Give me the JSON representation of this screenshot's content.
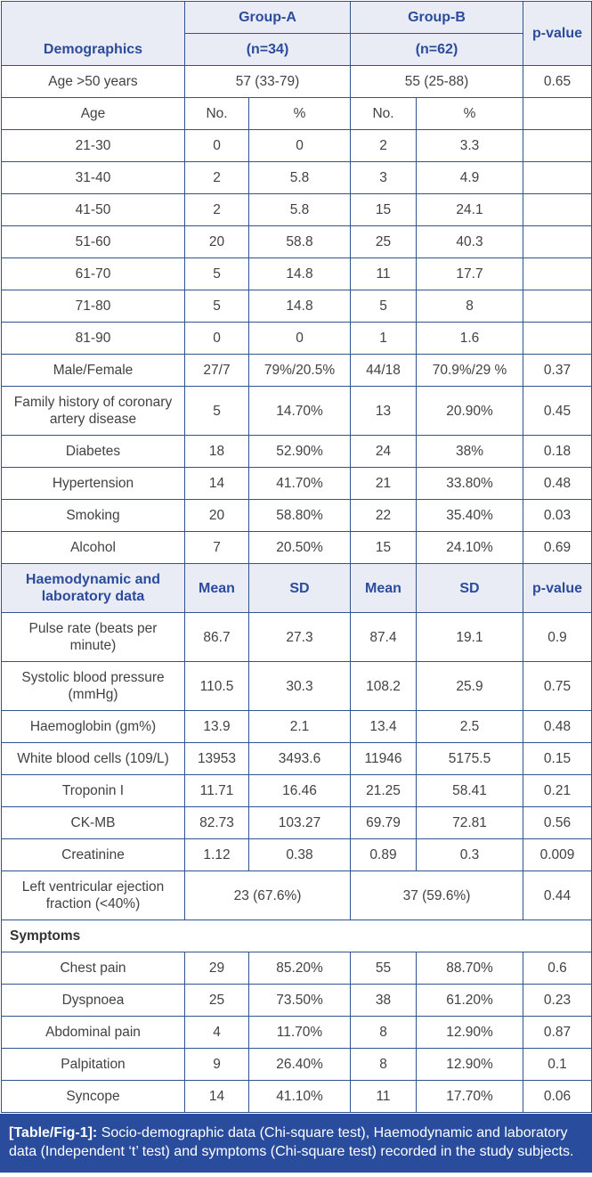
{
  "table": {
    "header": {
      "demographics": "Demographics",
      "group_a": "Group-A",
      "group_a_n": "(n=34)",
      "group_b": "Group-B",
      "group_b_n": "(n=62)",
      "p_value": "p-value"
    },
    "rows": [
      {
        "kind": "merged",
        "label": "Age >50 years",
        "a": "57 (33-79)",
        "b": "55 (25-88)",
        "p": "0.65"
      },
      {
        "kind": "data",
        "label": "Age",
        "a_no": "No.",
        "a_pct": "%",
        "b_no": "No.",
        "b_pct": "%",
        "p": ""
      },
      {
        "kind": "data",
        "label": "21-30",
        "a_no": "0",
        "a_pct": "0",
        "b_no": "2",
        "b_pct": "3.3",
        "p": ""
      },
      {
        "kind": "data",
        "label": "31-40",
        "a_no": "2",
        "a_pct": "5.8",
        "b_no": "3",
        "b_pct": "4.9",
        "p": ""
      },
      {
        "kind": "data",
        "label": "41-50",
        "a_no": "2",
        "a_pct": "5.8",
        "b_no": "15",
        "b_pct": "24.1",
        "p": ""
      },
      {
        "kind": "data",
        "label": "51-60",
        "a_no": "20",
        "a_pct": "58.8",
        "b_no": "25",
        "b_pct": "40.3",
        "p": ""
      },
      {
        "kind": "data",
        "label": "61-70",
        "a_no": "5",
        "a_pct": "14.8",
        "b_no": "11",
        "b_pct": "17.7",
        "p": ""
      },
      {
        "kind": "data",
        "label": "71-80",
        "a_no": "5",
        "a_pct": "14.8",
        "b_no": "5",
        "b_pct": "8",
        "p": ""
      },
      {
        "kind": "data",
        "label": "81-90",
        "a_no": "0",
        "a_pct": "0",
        "b_no": "1",
        "b_pct": "1.6",
        "p": ""
      },
      {
        "kind": "data",
        "label": "Male/Female",
        "a_no": "27/7",
        "a_pct": "79%/20.5%",
        "b_no": "44/18",
        "b_pct": "70.9%/29 %",
        "p": "0.37"
      },
      {
        "kind": "data",
        "label": "Family history of coronary artery disease",
        "a_no": "5",
        "a_pct": "14.70%",
        "b_no": "13",
        "b_pct": "20.90%",
        "p": "0.45"
      },
      {
        "kind": "data",
        "label": "Diabetes",
        "a_no": "18",
        "a_pct": "52.90%",
        "b_no": "24",
        "b_pct": "38%",
        "p": "0.18"
      },
      {
        "kind": "data",
        "label": "Hypertension",
        "a_no": "14",
        "a_pct": "41.70%",
        "b_no": "21",
        "b_pct": "33.80%",
        "p": "0.48"
      },
      {
        "kind": "data",
        "label": "Smoking",
        "a_no": "20",
        "a_pct": "58.80%",
        "b_no": "22",
        "b_pct": "35.40%",
        "p": "0.03"
      },
      {
        "kind": "data",
        "label": "Alcohol",
        "a_no": "7",
        "a_pct": "20.50%",
        "b_no": "15",
        "b_pct": "24.10%",
        "p": "0.69"
      },
      {
        "kind": "section",
        "label": "Haemodynamic and laboratory data",
        "a_no": "Mean",
        "a_pct": "SD",
        "b_no": "Mean",
        "b_pct": "SD",
        "p": "p-value"
      },
      {
        "kind": "data",
        "label": "Pulse rate (beats per minute)",
        "a_no": "86.7",
        "a_pct": "27.3",
        "b_no": "87.4",
        "b_pct": "19.1",
        "p": "0.9"
      },
      {
        "kind": "data",
        "label": "Systolic blood pressure (mmHg)",
        "a_no": "110.5",
        "a_pct": "30.3",
        "b_no": "108.2",
        "b_pct": "25.9",
        "p": "0.75"
      },
      {
        "kind": "data",
        "label": "Haemoglobin (gm%)",
        "a_no": "13.9",
        "a_pct": "2.1",
        "b_no": "13.4",
        "b_pct": "2.5",
        "p": "0.48"
      },
      {
        "kind": "data",
        "label": "White blood cells (109/L)",
        "a_no": "13953",
        "a_pct": "3493.6",
        "b_no": "11946",
        "b_pct": "5175.5",
        "p": "0.15"
      },
      {
        "kind": "data",
        "label": "Troponin I",
        "a_no": "11.71",
        "a_pct": "16.46",
        "b_no": "21.25",
        "b_pct": "58.41",
        "p": "0.21"
      },
      {
        "kind": "data",
        "label": "CK-MB",
        "a_no": "82.73",
        "a_pct": "103.27",
        "b_no": "69.79",
        "b_pct": "72.81",
        "p": "0.56"
      },
      {
        "kind": "data",
        "label": "Creatinine",
        "a_no": "1.12",
        "a_pct": "0.38",
        "b_no": "0.89",
        "b_pct": "0.3",
        "p": "0.009"
      },
      {
        "kind": "merged",
        "label": "Left ventricular ejection fraction (<40%)",
        "a": "23 (67.6%)",
        "b": "37 (59.6%)",
        "p": "0.44"
      },
      {
        "kind": "full",
        "label": "Symptoms"
      },
      {
        "kind": "data",
        "label": "Chest pain",
        "a_no": "29",
        "a_pct": "85.20%",
        "b_no": "55",
        "b_pct": "88.70%",
        "p": "0.6"
      },
      {
        "kind": "data",
        "label": "Dyspnoea",
        "a_no": "25",
        "a_pct": "73.50%",
        "b_no": "38",
        "b_pct": "61.20%",
        "p": "0.23"
      },
      {
        "kind": "data",
        "label": "Abdominal pain",
        "a_no": "4",
        "a_pct": "11.70%",
        "b_no": "8",
        "b_pct": "12.90%",
        "p": "0.87"
      },
      {
        "kind": "data",
        "label": "Palpitation",
        "a_no": "9",
        "a_pct": "26.40%",
        "b_no": "8",
        "b_pct": "12.90%",
        "p": "0.1"
      },
      {
        "kind": "data",
        "label": "Syncope",
        "a_no": "14",
        "a_pct": "41.10%",
        "b_no": "11",
        "b_pct": "17.70%",
        "p": "0.06"
      }
    ]
  },
  "caption": {
    "label": "[Table/Fig-1]:",
    "text": " Socio-demographic data (Chi-square test), Haemodynamic and laboratory data (Independent ‘t’ test) and symptoms (Chi-square test) recorded in the study subjects."
  },
  "colors": {
    "border": "#33518c",
    "header_bg": "#eaecf5",
    "header_text": "#2b4b9c",
    "body_text": "#424242",
    "caption_bg": "#2a4c9c",
    "caption_text": "#ffffff"
  }
}
